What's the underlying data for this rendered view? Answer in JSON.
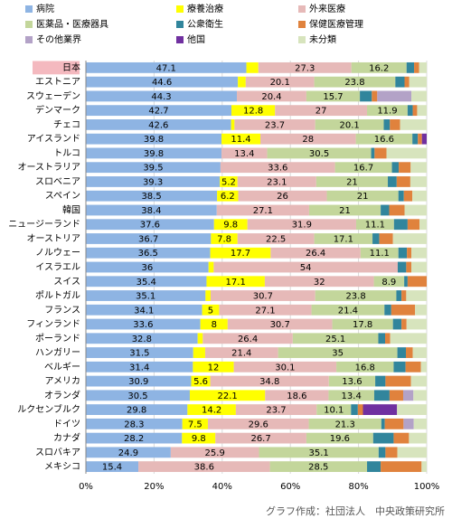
{
  "chart_data": {
    "type": "stacked-bar-horizontal",
    "categories": [
      "日本",
      "エストニア",
      "スウェーデン",
      "デンマーク",
      "チェコ",
      "アイスランド",
      "トルコ",
      "オーストラリア",
      "スロベニア",
      "スペイン",
      "韓国",
      "ニュージーランド",
      "オーストリア",
      "ノルウェー",
      "イスラエル",
      "スイス",
      "ポルトガル",
      "フランス",
      "フィンランド",
      "ポーランド",
      "ハンガリー",
      "ベルギー",
      "アメリカ",
      "オランダ",
      "ルクセンブルク",
      "ドイツ",
      "カナダ",
      "スロバキア",
      "メキシコ"
    ],
    "highlight_category": 0,
    "series": [
      {
        "name": "病院",
        "color": "#8eb4e3",
        "labeled": true,
        "values": [
          47.1,
          44.6,
          44.3,
          42.7,
          42.6,
          39.8,
          39.8,
          39.5,
          39.3,
          38.5,
          38.4,
          37.6,
          36.7,
          36.5,
          36.0,
          35.4,
          35.1,
          34.1,
          33.6,
          32.8,
          31.5,
          31.4,
          30.9,
          30.5,
          29.8,
          28.3,
          28.2,
          24.9,
          15.4
        ]
      },
      {
        "name": "療養治療",
        "color": "#ffff00",
        "labeled": true,
        "values": [
          3.5,
          2.3,
          0,
          12.8,
          1.0,
          11.4,
          0,
          0,
          5.2,
          6.2,
          0,
          9.8,
          7.8,
          17.7,
          1.5,
          17.1,
          1.5,
          5.0,
          8.0,
          1.5,
          3.5,
          12.0,
          5.6,
          22.1,
          14.2,
          7.5,
          9.8,
          0,
          0
        ]
      },
      {
        "name": "外来医療",
        "color": "#e6b9b8",
        "labeled": true,
        "values": [
          27.3,
          20.1,
          20.4,
          27.0,
          23.7,
          28.0,
          13.4,
          33.6,
          23.1,
          26.0,
          27.1,
          31.9,
          22.5,
          26.4,
          54.0,
          32.0,
          30.7,
          27.1,
          30.7,
          26.4,
          21.4,
          30.1,
          34.8,
          18.6,
          23.7,
          29.6,
          26.7,
          25.9,
          38.6
        ]
      },
      {
        "name": "医薬品・医療器具",
        "color": "#c3d69b",
        "labeled": true,
        "values": [
          16.2,
          23.8,
          15.7,
          11.9,
          20.1,
          16.6,
          30.5,
          16.7,
          21.0,
          21.0,
          21.0,
          11.1,
          17.1,
          11.1,
          0,
          8.9,
          23.8,
          21.4,
          17.8,
          25.1,
          35.0,
          16.8,
          13.6,
          13.4,
          10.1,
          21.3,
          19.6,
          35.1,
          28.5
        ]
      },
      {
        "name": "公衆衛生",
        "color": "#31859c",
        "labeled": false,
        "values": [
          2.2,
          2.7,
          3.5,
          1.5,
          1.8,
          1.6,
          1.0,
          2.0,
          2.6,
          1.6,
          2.5,
          4.0,
          2.0,
          2.5,
          2.5,
          1.0,
          1.5,
          2.0,
          2.5,
          2.0,
          2.5,
          3.5,
          3.0,
          4.5,
          2.0,
          1.0,
          6.0,
          2.0,
          4.0
        ]
      },
      {
        "name": "保健医療管理",
        "color": "#e0823d",
        "labeled": false,
        "values": [
          1.5,
          1.4,
          1.6,
          1.3,
          3.0,
          1.2,
          3.5,
          3.5,
          4.0,
          2.5,
          4.5,
          3.5,
          4.0,
          1.3,
          1.5,
          5.6,
          1.4,
          7.0,
          1.5,
          1.5,
          2.0,
          4.5,
          7.5,
          4.0,
          1.5,
          5.5,
          4.5,
          3.5,
          12.0
        ]
      },
      {
        "name": "その他業界",
        "color": "#b3a2c7",
        "labeled": false,
        "values": [
          0,
          0,
          10.0,
          0,
          0,
          0,
          0,
          0,
          0,
          0,
          0,
          0,
          0,
          0,
          0,
          0,
          0,
          0,
          0,
          0,
          0,
          0,
          0,
          3.0,
          0,
          3.0,
          0,
          0,
          0
        ]
      },
      {
        "name": "他国",
        "color": "#7030a0",
        "labeled": false,
        "values": [
          0,
          0,
          0,
          0,
          0,
          1.4,
          0,
          0,
          0,
          0,
          0,
          0,
          0,
          0,
          0,
          0,
          0,
          0,
          0,
          0,
          0,
          0,
          0,
          0,
          10.0,
          0,
          0,
          0,
          0
        ]
      },
      {
        "name": "未分類",
        "color": "#d7e4bd",
        "labeled": false,
        "values": [
          2.2,
          5.1,
          4.5,
          2.8,
          7.8,
          0,
          11.8,
          4.7,
          4.8,
          4.2,
          6.5,
          2.1,
          9.9,
          4.5,
          4.5,
          0,
          6.0,
          3.4,
          5.9,
          10.7,
          4.1,
          1.7,
          4.6,
          3.9,
          8.7,
          3.8,
          5.2,
          8.6,
          1.5
        ]
      }
    ],
    "xlim": [
      0,
      100
    ],
    "xticks": [
      {
        "value": 0,
        "label": "0%"
      },
      {
        "value": 20,
        "label": "20%"
      },
      {
        "value": 40,
        "label": "40%"
      },
      {
        "value": 60,
        "label": "60%"
      },
      {
        "value": 80,
        "label": "80%"
      },
      {
        "value": 100,
        "label": "100%"
      }
    ],
    "grid": true,
    "label_min": 5,
    "source": "グラフ作成：社団法人　中央政策研究所"
  }
}
